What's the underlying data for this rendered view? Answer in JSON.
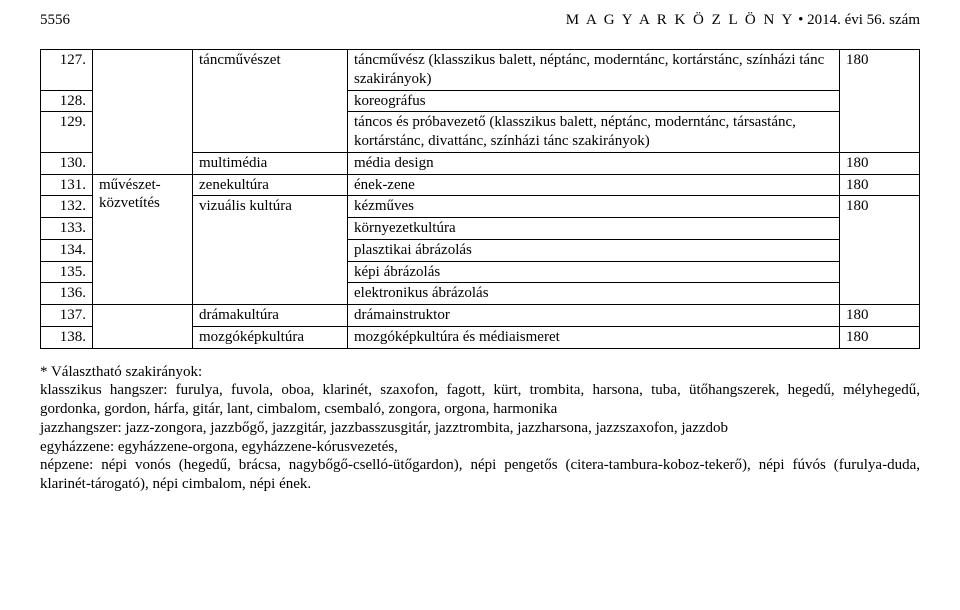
{
  "header": {
    "page_number": "5556",
    "publication": "M A G Y A R   K Ö Z L Ö N Y",
    "issue": " • 2014. évi 56. szám"
  },
  "table": {
    "rows": [
      {
        "n": "127.",
        "c2_blank": true,
        "c3": "táncművészet",
        "c4": "táncművész (klasszikus balett, néptánc, moderntánc, kortárstánc, színházi tánc szakirányok)",
        "c5": "180"
      },
      {
        "n": "128.",
        "c2_blank": true,
        "c3_blank": true,
        "c4": "koreográfus"
      },
      {
        "n": "129.",
        "c2_blank": true,
        "c3_blank": true,
        "c4": "táncos és próbavezető (klasszikus balett, néptánc, moderntánc, társastánc, kortárstánc, divattánc, színházi tánc szakirányok)"
      },
      {
        "n": "130.",
        "c2_blank": true,
        "c3": "multimédia",
        "c4": "média design",
        "c5": "180"
      },
      {
        "n": "131.",
        "c2": "művészet-\nközvetítés",
        "c3": "zenekultúra",
        "c4": "ének-zene",
        "c5": "180"
      },
      {
        "n": "132.",
        "c3": "vizuális kultúra",
        "c4": "kézműves",
        "c5": "180"
      },
      {
        "n": "133.",
        "c3_blank": true,
        "c4": "környezetkultúra"
      },
      {
        "n": "134.",
        "c3_blank": true,
        "c4": "plasztikai ábrázolás"
      },
      {
        "n": "135.",
        "c3_blank": true,
        "c4": "képi ábrázolás"
      },
      {
        "n": "136.",
        "c3_blank": true,
        "c4": "elektronikus ábrázolás"
      },
      {
        "n": "137.",
        "c2_blank": true,
        "c3": "drámakultúra",
        "c4": "drámainstruktor",
        "c5": "180"
      },
      {
        "n": "138.",
        "c2_blank": true,
        "c3": "mozgóképkultúra",
        "c4": "mozgóképkultúra és médiaismeret",
        "c5": "180"
      }
    ]
  },
  "footnote": {
    "lines": [
      "* Választható szakirányok:",
      "klasszikus hangszer: furulya, fuvola, oboa, klarinét, szaxofon, fagott, kürt, trombita, harsona, tuba, ütőhangszerek, hegedű, mélyhegedű, gordonka, gordon, hárfa, gitár, lant, cimbalom, csembaló, zongora, orgona, harmonika",
      " jazzhangszer: jazz-zongora, jazzbőgő, jazzgitár, jazzbasszusgitár, jazztrombita, jazzharsona, jazzszaxofon, jazzdob",
      " egyházzene: egyházzene-orgona, egyházzene-kórusvezetés,",
      " népzene: népi vonós (hegedű, brácsa, nagybőgő-cselló-ütőgardon), népi pengetős (citera-tambura-koboz-tekerő), népi fúvós (furulya-duda, klarinét-tárogató), népi cimbalom, népi ének."
    ]
  }
}
